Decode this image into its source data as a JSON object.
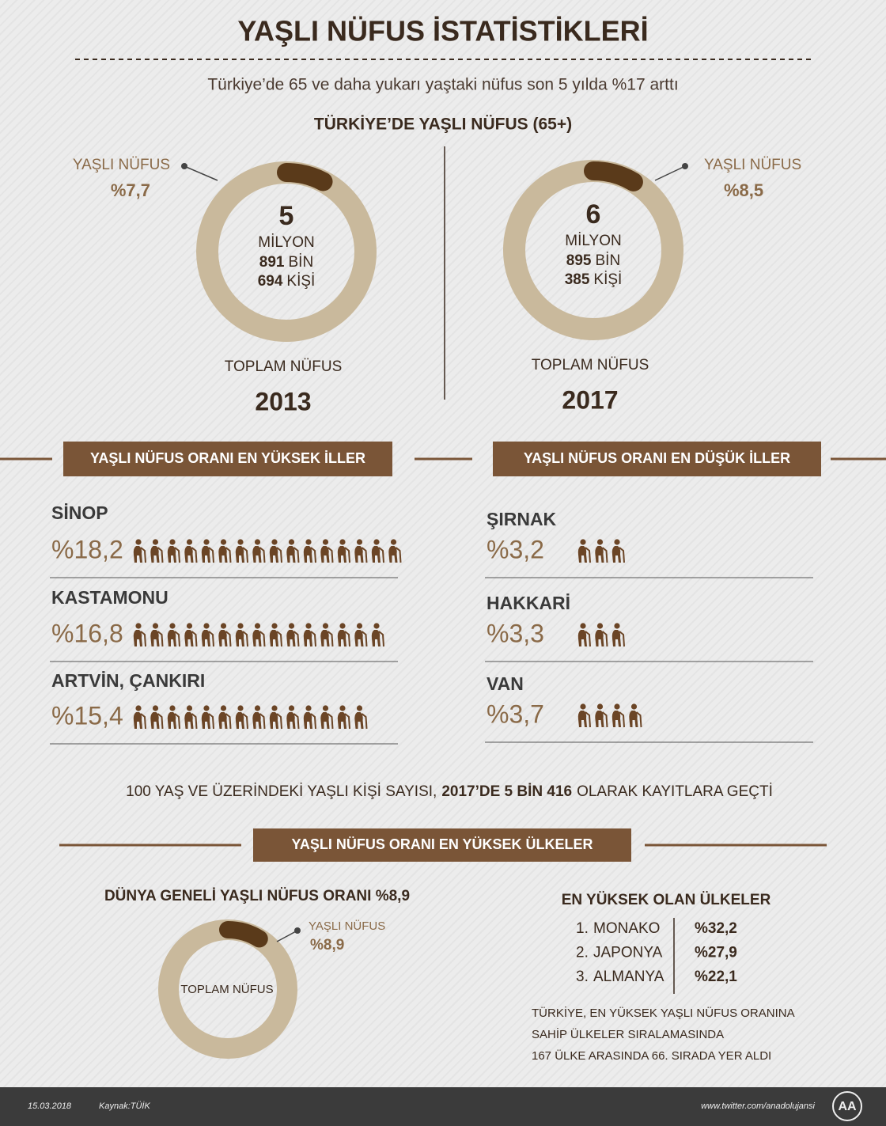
{
  "header": {
    "title": "YAŞLI NÜFUS İSTATİSTİKLERİ",
    "subtitle": "Türkiye’de 65 ve daha yukarı yaştaki nüfus son 5 yılda %17 arttı"
  },
  "turkey": {
    "title": "TÜRKİYE’DE YAŞLI NÜFUS (65+)",
    "years": [
      {
        "year": "2013",
        "total_label": "TOPLAM NÜFUS",
        "share_label": "YAŞLI NÜFUS",
        "share_text": "%7,7",
        "share": 7.7,
        "millions": "5",
        "millions_unit": "MİLYON",
        "thousands": "891",
        "thousands_unit": "BİN",
        "ones": "694",
        "ones_unit": "KİŞİ"
      },
      {
        "year": "2017",
        "total_label": "TOPLAM NÜFUS",
        "share_label": "YAŞLI NÜFUS",
        "share_text": "%8,5",
        "share": 8.5,
        "millions": "6",
        "millions_unit": "MİLYON",
        "thousands": "895",
        "thousands_unit": "BİN",
        "ones": "385",
        "ones_unit": "KİŞİ"
      }
    ]
  },
  "provinces": {
    "high": {
      "title": "YAŞLI NÜFUS ORANI EN YÜKSEK İLLER",
      "items": [
        {
          "name": "SİNOP",
          "value_label": "%18,2",
          "icons": 16
        },
        {
          "name": "KASTAMONU",
          "value_label": "%16,8",
          "icons": 15
        },
        {
          "name": "ARTVİN, ÇANKIRI",
          "value_label": "%15,4",
          "icons": 14
        }
      ]
    },
    "low": {
      "title": "YAŞLI NÜFUS ORANI EN DÜŞÜK İLLER",
      "items": [
        {
          "name": "ŞIRNAK",
          "value_label": "%3,2",
          "icons": 3
        },
        {
          "name": "HAKKARİ",
          "value_label": "%3,3",
          "icons": 3
        },
        {
          "name": "VAN",
          "value_label": "%3,7",
          "icons": 4
        }
      ]
    }
  },
  "centenarians": {
    "before": "100 YAŞ VE ÜZERİNDEKİ YAŞLI KİŞİ SAYISI,",
    "bold": "2017’DE 5 BİN 416",
    "after": "OLARAK KAYITLARA GEÇTİ"
  },
  "countries": {
    "title": "YAŞLI NÜFUS ORANI EN YÜKSEK ÜLKELER",
    "world": {
      "title": "DÜNYA GENELİ YAŞLI NÜFUS ORANI %8,9",
      "share_label": "YAŞLI NÜFUS",
      "share_text": "%8,9",
      "share": 8.9,
      "total_label": "TOPLAM NÜFUS"
    },
    "ranking": {
      "title": "EN YÜKSEK OLAN ÜLKELER",
      "items": [
        {
          "rank": "1.",
          "name": "MONAKO",
          "value": "%32,2"
        },
        {
          "rank": "2.",
          "name": "JAPONYA",
          "value": "%27,9"
        },
        {
          "rank": "3.",
          "name": "ALMANYA",
          "value": "%22,1"
        }
      ]
    },
    "note": [
      "TÜRKİYE, EN YÜKSEK YAŞLI NÜFUS ORANINA",
      "SAHİP ÜLKELER SIRALAMASINDA",
      "167 ÜLKE ARASINDA 66. SIRADA YER ALDI"
    ]
  },
  "footer": {
    "date": "15.03.2018",
    "source": "Kaynak:TÜİK",
    "twitter": "www.twitter.com/anadolujansi",
    "logo": "AA"
  }
}
